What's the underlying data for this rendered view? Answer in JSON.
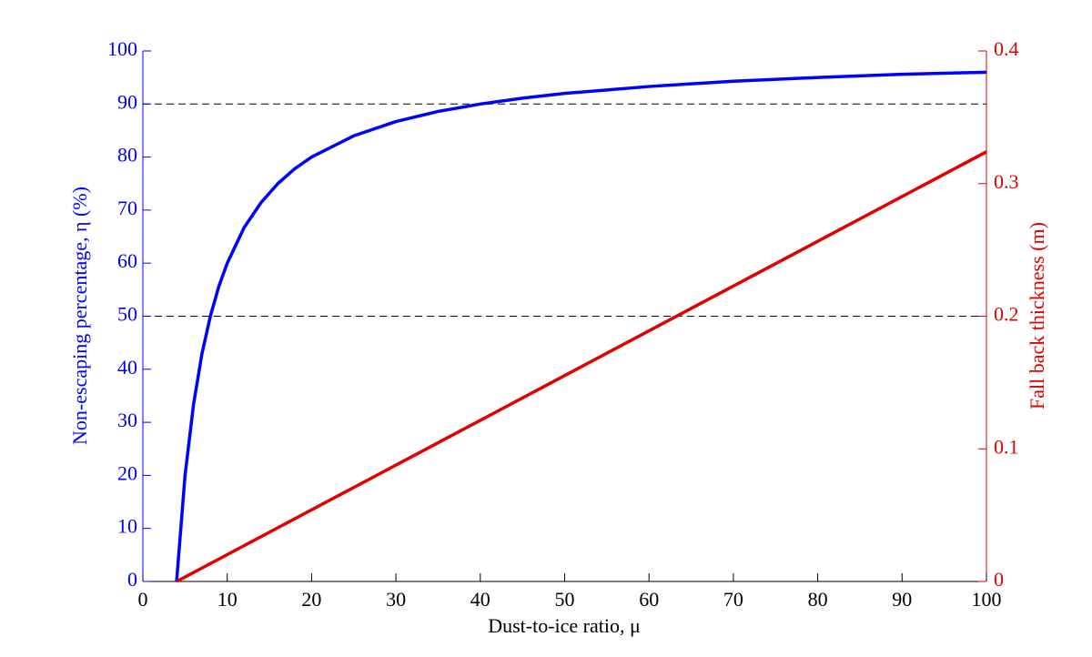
{
  "chart_data": {
    "type": "line",
    "xlabel": "Dust-to-ice ratio, μ",
    "ylabel": "Non-escaping percentage, η (%)",
    "y2label": "Fall back thickness (m)",
    "xlim": [
      0,
      100
    ],
    "xticks": [
      0,
      10,
      20,
      30,
      40,
      50,
      60,
      70,
      80,
      90,
      100
    ],
    "ylim": [
      0,
      100
    ],
    "yticks": [
      0,
      10,
      20,
      30,
      40,
      50,
      60,
      70,
      80,
      90,
      100
    ],
    "y2lim": [
      0,
      0.4
    ],
    "y2ticks": [
      0,
      0.1,
      0.2,
      0.3,
      0.4
    ],
    "hlines": [
      50,
      90
    ],
    "ycolor": "#0000ff",
    "y2color": "#e00000",
    "series": [
      {
        "color": "#0000ff",
        "x": [
          4,
          5,
          6,
          7,
          8,
          9,
          10,
          12,
          14,
          16,
          18,
          20,
          25,
          30,
          35,
          40,
          45,
          50,
          60,
          70,
          80,
          90,
          100
        ],
        "values": [
          0,
          20,
          33.3,
          42.9,
          50,
          55.6,
          60,
          66.7,
          71.4,
          75,
          77.8,
          80,
          84,
          86.7,
          88.6,
          90,
          91.1,
          92,
          93.3,
          94.3,
          95,
          95.6,
          96
        ]
      },
      {
        "color": "#e00000",
        "axis": "y2",
        "x": [
          4,
          52,
          100
        ],
        "values": [
          0,
          0.162,
          0.324
        ]
      }
    ]
  }
}
